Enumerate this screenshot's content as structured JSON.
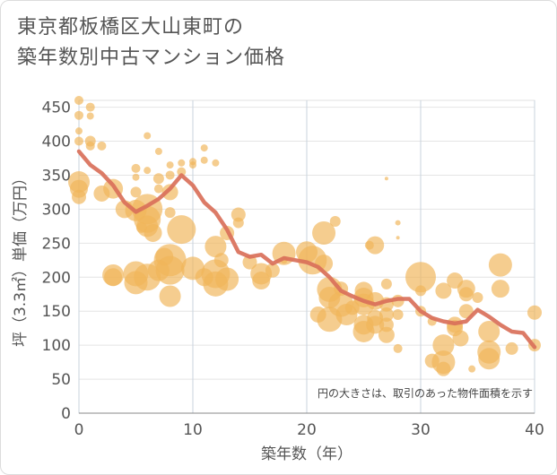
{
  "title_line1": "東京都板橋区大山東町の",
  "title_line2": "築年数別中古マンション価格",
  "chart_data": {
    "type": "scatter",
    "xlabel": "築年数（年）",
    "ylabel": "坪（3.3㎡）単価（万円）",
    "xlim": [
      0,
      40
    ],
    "ylim": [
      0,
      460
    ],
    "x_ticks": [
      "0",
      "10",
      "20",
      "30",
      "40"
    ],
    "y_ticks": [
      "0",
      "50",
      "100",
      "150",
      "200",
      "250",
      "300",
      "350",
      "400",
      "450"
    ],
    "grid": true,
    "note": "円の大きさは、取引のあった物件面積を示す",
    "bubble_color": "#f0b65a",
    "line_color": "#d9705a",
    "bubbles": [
      {
        "x": 0,
        "y": 460,
        "s": 5
      },
      {
        "x": 0,
        "y": 438,
        "s": 5
      },
      {
        "x": 0,
        "y": 415,
        "s": 4
      },
      {
        "x": 0,
        "y": 400,
        "s": 5
      },
      {
        "x": 0,
        "y": 340,
        "s": 12
      },
      {
        "x": 0,
        "y": 330,
        "s": 10
      },
      {
        "x": 0,
        "y": 318,
        "s": 8
      },
      {
        "x": 1,
        "y": 450,
        "s": 5
      },
      {
        "x": 1,
        "y": 437,
        "s": 4
      },
      {
        "x": 1,
        "y": 400,
        "s": 6
      },
      {
        "x": 1,
        "y": 393,
        "s": 5
      },
      {
        "x": 2,
        "y": 393,
        "s": 5
      },
      {
        "x": 2,
        "y": 323,
        "s": 9
      },
      {
        "x": 3,
        "y": 330,
        "s": 11
      },
      {
        "x": 3,
        "y": 203,
        "s": 12
      },
      {
        "x": 3,
        "y": 200,
        "s": 10
      },
      {
        "x": 4,
        "y": 300,
        "s": 10
      },
      {
        "x": 5,
        "y": 360,
        "s": 5
      },
      {
        "x": 5,
        "y": 347,
        "s": 4
      },
      {
        "x": 5,
        "y": 325,
        "s": 6
      },
      {
        "x": 5,
        "y": 298,
        "s": 12
      },
      {
        "x": 5,
        "y": 205,
        "s": 14
      },
      {
        "x": 5,
        "y": 192,
        "s": 13
      },
      {
        "x": 5.5,
        "y": 273,
        "s": 6
      },
      {
        "x": 6,
        "y": 408,
        "s": 4
      },
      {
        "x": 6,
        "y": 357,
        "s": 4
      },
      {
        "x": 6,
        "y": 300,
        "s": 17
      },
      {
        "x": 6,
        "y": 285,
        "s": 15
      },
      {
        "x": 6,
        "y": 275,
        "s": 12
      },
      {
        "x": 6,
        "y": 200,
        "s": 15
      },
      {
        "x": 6.5,
        "y": 265,
        "s": 10
      },
      {
        "x": 7,
        "y": 385,
        "s": 4
      },
      {
        "x": 7,
        "y": 345,
        "s": 6
      },
      {
        "x": 7,
        "y": 330,
        "s": 5
      },
      {
        "x": 7,
        "y": 210,
        "s": 12
      },
      {
        "x": 7.5,
        "y": 230,
        "s": 10
      },
      {
        "x": 8,
        "y": 365,
        "s": 4
      },
      {
        "x": 8,
        "y": 350,
        "s": 5
      },
      {
        "x": 8,
        "y": 325,
        "s": 9
      },
      {
        "x": 8,
        "y": 295,
        "s": 6
      },
      {
        "x": 8,
        "y": 225,
        "s": 18
      },
      {
        "x": 8,
        "y": 210,
        "s": 16
      },
      {
        "x": 8,
        "y": 172,
        "s": 12
      },
      {
        "x": 9,
        "y": 368,
        "s": 4
      },
      {
        "x": 9,
        "y": 355,
        "s": 5
      },
      {
        "x": 9,
        "y": 270,
        "s": 16
      },
      {
        "x": 10,
        "y": 370,
        "s": 4
      },
      {
        "x": 10,
        "y": 365,
        "s": 4
      },
      {
        "x": 10,
        "y": 213,
        "s": 13
      },
      {
        "x": 11,
        "y": 390,
        "s": 4
      },
      {
        "x": 11,
        "y": 372,
        "s": 4
      },
      {
        "x": 11,
        "y": 200,
        "s": 10
      },
      {
        "x": 12,
        "y": 368,
        "s": 4
      },
      {
        "x": 12,
        "y": 245,
        "s": 12
      },
      {
        "x": 12,
        "y": 205,
        "s": 16
      },
      {
        "x": 12,
        "y": 190,
        "s": 14
      },
      {
        "x": 12.5,
        "y": 225,
        "s": 8
      },
      {
        "x": 13,
        "y": 265,
        "s": 8
      },
      {
        "x": 13,
        "y": 197,
        "s": 13
      },
      {
        "x": 14,
        "y": 292,
        "s": 8
      },
      {
        "x": 14,
        "y": 280,
        "s": 6
      },
      {
        "x": 15,
        "y": 222,
        "s": 8
      },
      {
        "x": 16,
        "y": 205,
        "s": 12
      },
      {
        "x": 16,
        "y": 195,
        "s": 10
      },
      {
        "x": 17,
        "y": 210,
        "s": 8
      },
      {
        "x": 18,
        "y": 235,
        "s": 13
      },
      {
        "x": 18,
        "y": 225,
        "s": 4
      },
      {
        "x": 20,
        "y": 237,
        "s": 12
      },
      {
        "x": 20.5,
        "y": 225,
        "s": 16
      },
      {
        "x": 21,
        "y": 145,
        "s": 9
      },
      {
        "x": 21.5,
        "y": 265,
        "s": 13
      },
      {
        "x": 21.5,
        "y": 220,
        "s": 10
      },
      {
        "x": 22,
        "y": 182,
        "s": 14
      },
      {
        "x": 22,
        "y": 170,
        "s": 12
      },
      {
        "x": 22,
        "y": 138,
        "s": 14
      },
      {
        "x": 22.5,
        "y": 282,
        "s": 6
      },
      {
        "x": 23,
        "y": 183,
        "s": 8
      },
      {
        "x": 23,
        "y": 160,
        "s": 14
      },
      {
        "x": 23.5,
        "y": 145,
        "s": 12
      },
      {
        "x": 24,
        "y": 155,
        "s": 8
      },
      {
        "x": 25,
        "y": 180,
        "s": 10
      },
      {
        "x": 25,
        "y": 170,
        "s": 11
      },
      {
        "x": 25,
        "y": 160,
        "s": 12
      },
      {
        "x": 25,
        "y": 130,
        "s": 11
      },
      {
        "x": 25,
        "y": 120,
        "s": 12
      },
      {
        "x": 25.5,
        "y": 247,
        "s": 5
      },
      {
        "x": 26,
        "y": 247,
        "s": 10
      },
      {
        "x": 26,
        "y": 165,
        "s": 10
      },
      {
        "x": 26,
        "y": 140,
        "s": 9
      },
      {
        "x": 26,
        "y": 130,
        "s": 10
      },
      {
        "x": 27,
        "y": 345,
        "s": 2
      },
      {
        "x": 27,
        "y": 190,
        "s": 6
      },
      {
        "x": 27,
        "y": 160,
        "s": 8
      },
      {
        "x": 27,
        "y": 145,
        "s": 8
      },
      {
        "x": 27,
        "y": 130,
        "s": 8
      },
      {
        "x": 27,
        "y": 115,
        "s": 9
      },
      {
        "x": 28,
        "y": 280,
        "s": 3
      },
      {
        "x": 28,
        "y": 258,
        "s": 2
      },
      {
        "x": 28,
        "y": 165,
        "s": 7
      },
      {
        "x": 28,
        "y": 145,
        "s": 6
      },
      {
        "x": 28,
        "y": 95,
        "s": 5
      },
      {
        "x": 30,
        "y": 200,
        "s": 17
      },
      {
        "x": 30,
        "y": 180,
        "s": 6
      },
      {
        "x": 30,
        "y": 150,
        "s": 6
      },
      {
        "x": 31,
        "y": 135,
        "s": 5
      },
      {
        "x": 31,
        "y": 77,
        "s": 8
      },
      {
        "x": 32,
        "y": 180,
        "s": 9
      },
      {
        "x": 32,
        "y": 100,
        "s": 12
      },
      {
        "x": 32,
        "y": 75,
        "s": 13
      },
      {
        "x": 32,
        "y": 65,
        "s": 8
      },
      {
        "x": 33,
        "y": 195,
        "s": 9
      },
      {
        "x": 33,
        "y": 130,
        "s": 9
      },
      {
        "x": 33,
        "y": 125,
        "s": 9
      },
      {
        "x": 33.5,
        "y": 110,
        "s": 9
      },
      {
        "x": 34,
        "y": 183,
        "s": 10
      },
      {
        "x": 34,
        "y": 175,
        "s": 8
      },
      {
        "x": 34,
        "y": 150,
        "s": 8
      },
      {
        "x": 34.5,
        "y": 65,
        "s": 4
      },
      {
        "x": 35,
        "y": 170,
        "s": 6
      },
      {
        "x": 36,
        "y": 120,
        "s": 12
      },
      {
        "x": 36,
        "y": 90,
        "s": 13
      },
      {
        "x": 36,
        "y": 80,
        "s": 12
      },
      {
        "x": 37,
        "y": 218,
        "s": 13
      },
      {
        "x": 37,
        "y": 183,
        "s": 10
      },
      {
        "x": 38,
        "y": 95,
        "s": 7
      },
      {
        "x": 40,
        "y": 148,
        "s": 8
      },
      {
        "x": 40,
        "y": 100,
        "s": 7
      }
    ],
    "trend": {
      "x": [
        0,
        1,
        2,
        3,
        4,
        5,
        6,
        7,
        8,
        9,
        10,
        11,
        12,
        13,
        14,
        15,
        16,
        17,
        18,
        19,
        20,
        21,
        22,
        23,
        24,
        25,
        26,
        27,
        28,
        29,
        30,
        31,
        32,
        33,
        34,
        35,
        36,
        37,
        38,
        39,
        40
      ],
      "y": [
        385,
        365,
        353,
        335,
        310,
        296,
        305,
        315,
        330,
        350,
        335,
        310,
        295,
        270,
        237,
        230,
        233,
        220,
        228,
        225,
        222,
        215,
        200,
        180,
        172,
        165,
        160,
        165,
        168,
        168,
        150,
        140,
        135,
        132,
        135,
        152,
        142,
        130,
        120,
        118,
        97
      ]
    }
  }
}
